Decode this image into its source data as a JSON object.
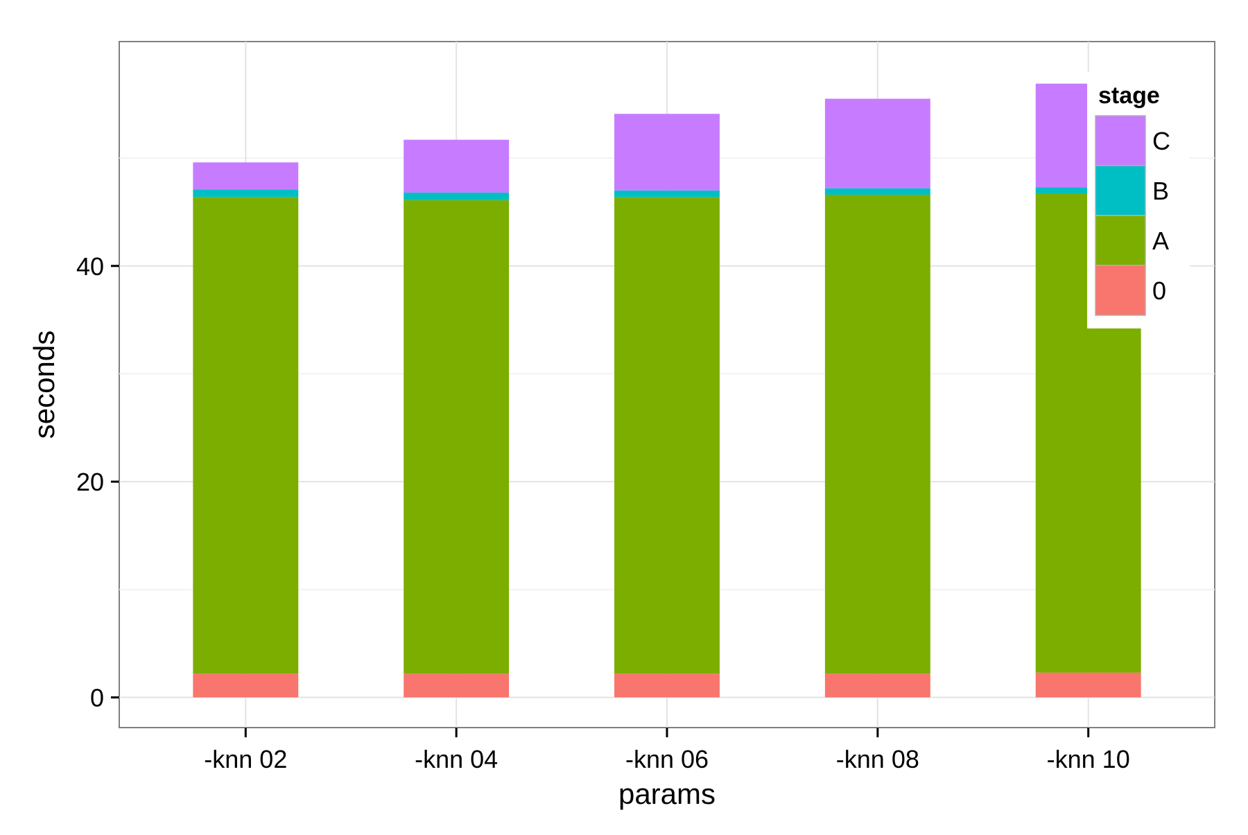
{
  "chart_data": {
    "type": "bar",
    "stacked": true,
    "xlabel": "params",
    "ylabel": "seconds",
    "categories": [
      "-knn 02",
      "-knn 04",
      "-knn 06",
      "-knn 08",
      "-knn 10"
    ],
    "series": [
      {
        "name": "0",
        "color": "#F8766D",
        "values": [
          2.2,
          2.2,
          2.2,
          2.2,
          2.3
        ]
      },
      {
        "name": "A",
        "color": "#7CAE00",
        "values": [
          44.2,
          43.9,
          44.2,
          44.4,
          44.4
        ]
      },
      {
        "name": "B",
        "color": "#00BFC4",
        "values": [
          0.7,
          0.7,
          0.6,
          0.6,
          0.6
        ]
      },
      {
        "name": "C",
        "color": "#C77CFF",
        "values": [
          2.5,
          4.9,
          7.1,
          8.3,
          9.6
        ]
      }
    ],
    "ylim": [
      -2.8,
      60.8
    ],
    "yticks": [
      0,
      20,
      40
    ],
    "grid": true,
    "legend": {
      "title": "stage",
      "position": "top-right",
      "order": [
        "C",
        "B",
        "A",
        "0"
      ]
    }
  }
}
